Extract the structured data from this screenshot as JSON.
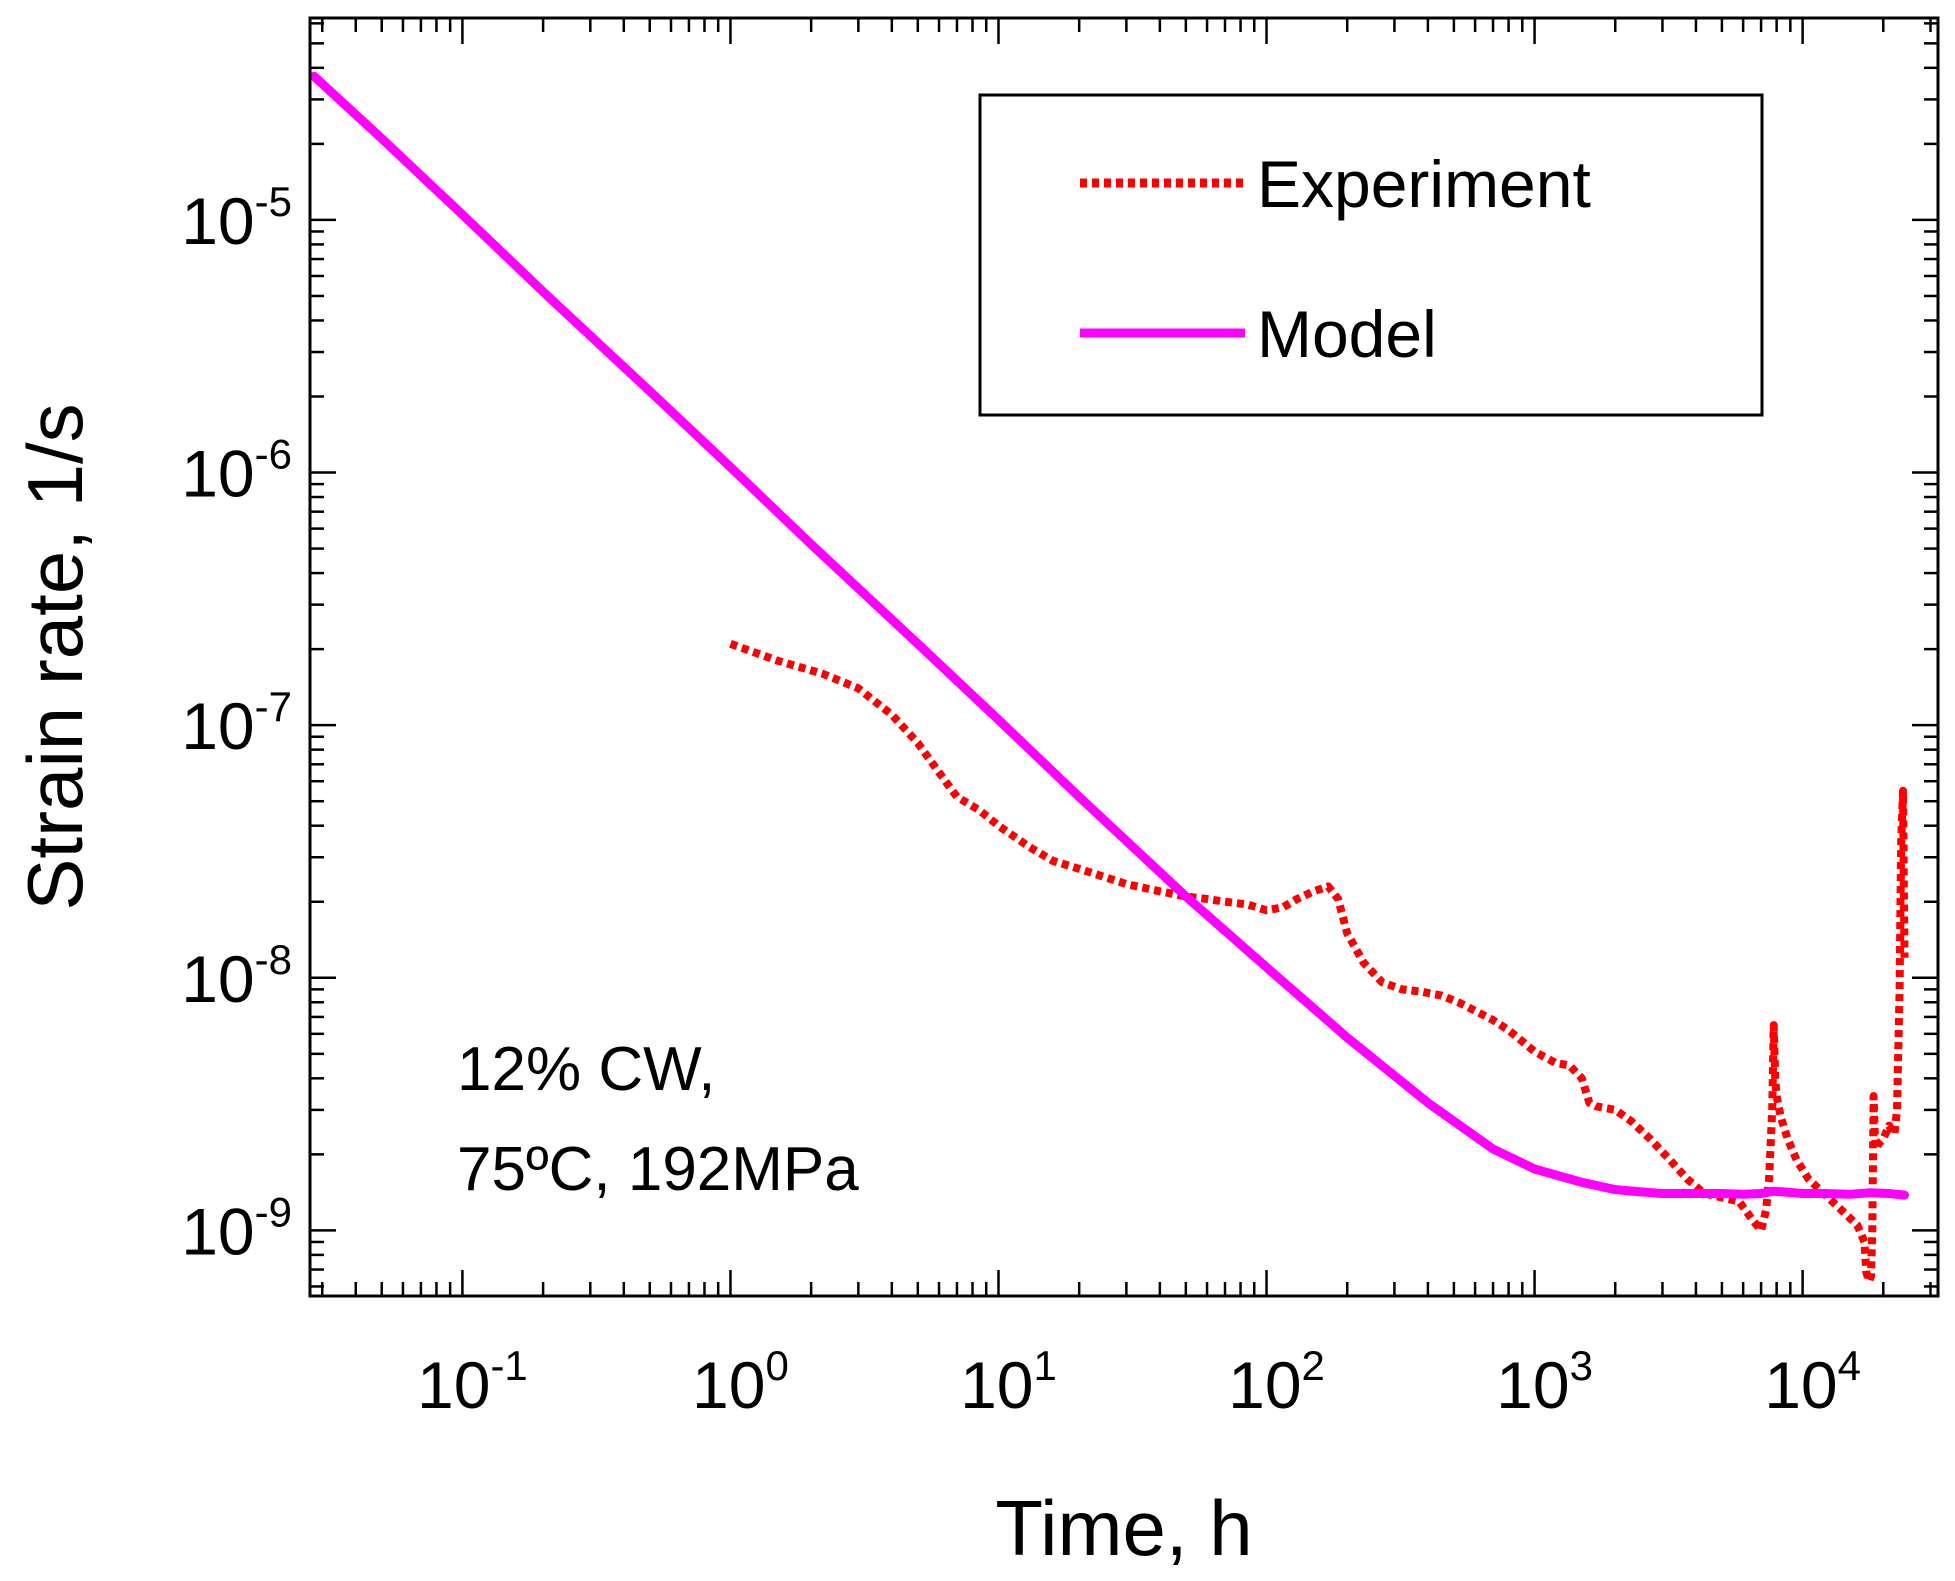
{
  "chart_data": {
    "type": "line",
    "title": "",
    "xlabel": "Time, h",
    "ylabel": "Strain rate,  1/s",
    "xscale": "log",
    "yscale": "log",
    "xlim": [
      0.027,
      32000
    ],
    "ylim": [
      5.5e-10,
      6.3e-05
    ],
    "grid": false,
    "legend_position": "top-right",
    "x_ticks": [
      {
        "value": 0.1,
        "base": "10",
        "exp": "-1"
      },
      {
        "value": 1,
        "base": "10",
        "exp": "0"
      },
      {
        "value": 10,
        "base": "10",
        "exp": "1"
      },
      {
        "value": 100,
        "base": "10",
        "exp": "2"
      },
      {
        "value": 1000,
        "base": "10",
        "exp": "3"
      },
      {
        "value": 10000,
        "base": "10",
        "exp": "4"
      }
    ],
    "y_ticks": [
      {
        "value": 1e-09,
        "base": "10",
        "exp": "-9"
      },
      {
        "value": 1e-08,
        "base": "10",
        "exp": "-8"
      },
      {
        "value": 1e-07,
        "base": "10",
        "exp": "-7"
      },
      {
        "value": 1e-06,
        "base": "10",
        "exp": "-6"
      },
      {
        "value": 1e-05,
        "base": "10",
        "exp": "-5"
      }
    ],
    "annotations": [
      "12% CW,",
      "75ºC, 192MPa"
    ],
    "series": [
      {
        "name": "Experiment",
        "color": "#ff0000",
        "style": "dotted",
        "x": [
          1.0,
          1.5,
          2.2,
          3.0,
          4.0,
          5.0,
          6.0,
          7.0,
          8.5,
          10,
          13,
          16,
          20,
          25,
          30,
          40,
          50,
          60,
          70,
          85,
          100,
          115,
          130,
          150,
          170,
          185,
          200,
          230,
          270,
          320,
          380,
          450,
          520,
          600,
          700,
          800,
          900,
          1000,
          1200,
          1350,
          1500,
          1600,
          1700,
          2000,
          2300,
          2700,
          3200,
          3700,
          4300,
          5000,
          5800,
          6500,
          7000,
          7300,
          7500,
          7700,
          7800,
          7900,
          8000,
          8300,
          8800,
          9500,
          10500,
          12000,
          14000,
          16000,
          17000,
          17300,
          17700,
          18000,
          18200,
          18400,
          18600,
          18800,
          19200,
          20000,
          21000,
          22000,
          22500,
          23000,
          23300,
          23700,
          24000
        ],
        "values": [
          2.1e-07,
          1.8e-07,
          1.6e-07,
          1.4e-07,
          1.1e-07,
          8.5e-08,
          6.5e-08,
          5.2e-08,
          4.6e-08,
          4e-08,
          3.3e-08,
          2.9e-08,
          2.7e-08,
          2.5e-08,
          2.35e-08,
          2.2e-08,
          2.1e-08,
          2.05e-08,
          2e-08,
          1.95e-08,
          1.85e-08,
          1.9e-08,
          2.05e-08,
          2.2e-08,
          2.3e-08,
          2.05e-08,
          1.5e-08,
          1.15e-08,
          9.6e-09,
          9e-09,
          8.8e-09,
          8.5e-09,
          8e-09,
          7.4e-09,
          6.8e-09,
          6.2e-09,
          5.6e-09,
          5.1e-09,
          4.6e-09,
          4.5e-09,
          4e-09,
          3.2e-09,
          3.1e-09,
          3e-09,
          2.7e-09,
          2.3e-09,
          1.9e-09,
          1.6e-09,
          1.4e-09,
          1.35e-09,
          1.3e-09,
          1.1e-09,
          1e-09,
          1.2e-09,
          1.6e-09,
          3e-09,
          6.5e-09,
          4e-09,
          3.4e-09,
          2.8e-09,
          2.3e-09,
          1.9e-09,
          1.6e-09,
          1.4e-09,
          1.2e-09,
          1.05e-09,
          9e-10,
          6.8e-10,
          6.3e-10,
          6.6e-10,
          1e-09,
          3.4e-09,
          2.4e-09,
          2.1e-09,
          2.2e-09,
          2.3e-09,
          2.6e-09,
          2.4e-09,
          3e-09,
          9e-09,
          3.4e-08,
          5.5e-08,
          1.2e-08
        ]
      },
      {
        "name": "Model",
        "color": "#ff00ff",
        "style": "solid",
        "x": [
          0.028,
          0.05,
          0.1,
          0.2,
          0.5,
          1,
          2,
          5,
          10,
          20,
          50,
          100,
          200,
          400,
          700,
          1000,
          1500,
          2000,
          2500,
          3000,
          4000,
          5000,
          6000,
          7000,
          7800,
          8500,
          10000,
          12000,
          15000,
          18000,
          21000,
          24000
        ],
        "values": [
          3.7e-05,
          2.1e-05,
          1.05e-05,
          5.2e-06,
          2.1e-06,
          1.05e-06,
          5.2e-07,
          2.1e-07,
          1.05e-07,
          5.2e-08,
          2.1e-08,
          1.1e-08,
          5.8e-09,
          3.2e-09,
          2.1e-09,
          1.75e-09,
          1.55e-09,
          1.45e-09,
          1.42e-09,
          1.4e-09,
          1.4e-09,
          1.4e-09,
          1.39e-09,
          1.4e-09,
          1.43e-09,
          1.42e-09,
          1.4e-09,
          1.4e-09,
          1.39e-09,
          1.41e-09,
          1.4e-09,
          1.38e-09
        ]
      }
    ]
  }
}
